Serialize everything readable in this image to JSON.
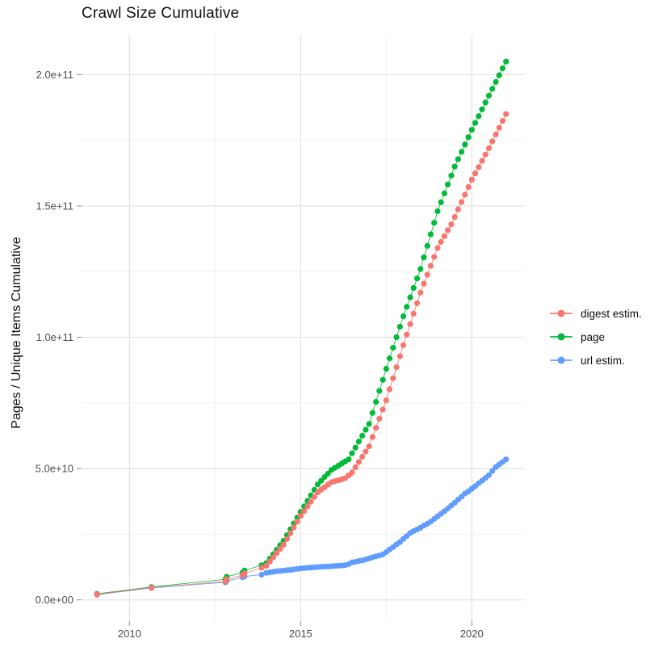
{
  "title": "Crawl Size Cumulative",
  "y_axis": {
    "title": "Pages / Unique Items Cumulative",
    "tick_labels": [
      "0.0e+00",
      "5.0e+10",
      "1.0e+11",
      "1.5e+11",
      "2.0e+11"
    ]
  },
  "x_axis": {
    "tick_labels": [
      "2010",
      "2015",
      "2020"
    ]
  },
  "legend": {
    "position": "right",
    "items": [
      {
        "label": "digest estim.",
        "color": "#F8766D"
      },
      {
        "label": "page",
        "color": "#00BA38"
      },
      {
        "label": "url estim.",
        "color": "#619CFF"
      }
    ]
  },
  "colors": {
    "series_red": "#F8766D",
    "series_green": "#00BA38",
    "series_blue": "#619CFF",
    "grid_major": "#E2E2E2",
    "grid_minor": "#F0F0F0",
    "tick_mark": "#888888",
    "axis_text": "#4D4D4D",
    "title_text": "#101010",
    "background": "#FFFFFF"
  },
  "chart_data": {
    "type": "scatter",
    "title": "Crawl Size Cumulative",
    "xlabel": "",
    "ylabel": "Pages / Unique Items Cumulative",
    "value_unit": "billions (1e9); y tick labels shown in scientific notation",
    "grid": true,
    "legend_position": "right",
    "xlim": [
      2008.6,
      2021.55
    ],
    "ylim_e9": [
      -8.1,
      215.2
    ],
    "x_ticks": [
      2010,
      2015,
      2020
    ],
    "x_minor_gridlines": [
      2012.5,
      2017.5
    ],
    "y_ticks_e9": [
      0,
      50,
      100,
      150,
      200
    ],
    "y_minor_gridlines_e9": [
      25,
      75,
      125,
      175
    ],
    "series": [
      {
        "name": "digest estim.",
        "color": "#F8766D",
        "points": [
          [
            2009.05,
            2.1
          ],
          [
            2010.64,
            4.7
          ],
          [
            2012.8,
            7.0
          ],
          [
            2012.84,
            7.9
          ],
          [
            2013.3,
            9.4
          ],
          [
            2013.36,
            10.1
          ],
          [
            2013.86,
            12.2
          ],
          [
            2014.0,
            13.0
          ],
          [
            2014.1,
            14.6
          ],
          [
            2014.2,
            16.2
          ],
          [
            2014.3,
            17.8
          ],
          [
            2014.4,
            19.4
          ],
          [
            2014.5,
            21.0
          ],
          [
            2014.6,
            23.2
          ],
          [
            2014.7,
            25.4
          ],
          [
            2014.8,
            27.6
          ],
          [
            2014.9,
            29.8
          ],
          [
            2015.0,
            32.0
          ],
          [
            2015.1,
            33.8
          ],
          [
            2015.2,
            35.6
          ],
          [
            2015.3,
            37.4
          ],
          [
            2015.4,
            39.2
          ],
          [
            2015.5,
            41.0
          ],
          [
            2015.6,
            42.0
          ],
          [
            2015.7,
            42.9
          ],
          [
            2015.8,
            43.9
          ],
          [
            2015.9,
            44.8
          ],
          [
            2016.0,
            45.2
          ],
          [
            2016.1,
            45.5
          ],
          [
            2016.2,
            45.9
          ],
          [
            2016.3,
            46.3
          ],
          [
            2016.4,
            47.4
          ],
          [
            2016.5,
            48.5
          ],
          [
            2016.6,
            50.5
          ],
          [
            2016.7,
            52.5
          ],
          [
            2016.8,
            54.5
          ],
          [
            2016.9,
            56.5
          ],
          [
            2017.0,
            58.5
          ],
          [
            2017.1,
            62.0
          ],
          [
            2017.2,
            65.5
          ],
          [
            2017.3,
            69.0
          ],
          [
            2017.4,
            72.5
          ],
          [
            2017.5,
            76.0
          ],
          [
            2017.6,
            80.2
          ],
          [
            2017.7,
            84.4
          ],
          [
            2017.8,
            88.6
          ],
          [
            2017.9,
            92.8
          ],
          [
            2018.0,
            97.0
          ],
          [
            2018.1,
            101.0
          ],
          [
            2018.2,
            105.0
          ],
          [
            2018.3,
            109.0
          ],
          [
            2018.4,
            113.0
          ],
          [
            2018.5,
            117.0
          ],
          [
            2018.6,
            120.4
          ],
          [
            2018.7,
            123.8
          ],
          [
            2018.8,
            127.2
          ],
          [
            2018.9,
            130.6
          ],
          [
            2019.0,
            134.0
          ],
          [
            2019.1,
            136.3
          ],
          [
            2019.2,
            138.5
          ],
          [
            2019.3,
            140.8
          ],
          [
            2019.4,
            143.0
          ],
          [
            2019.5,
            145.8
          ],
          [
            2019.6,
            148.7
          ],
          [
            2019.7,
            151.5
          ],
          [
            2019.8,
            154.3
          ],
          [
            2019.9,
            157.2
          ],
          [
            2020.0,
            160.0
          ],
          [
            2020.1,
            162.4
          ],
          [
            2020.2,
            164.8
          ],
          [
            2020.3,
            167.2
          ],
          [
            2020.4,
            169.6
          ],
          [
            2020.5,
            172.0
          ],
          [
            2020.6,
            174.6
          ],
          [
            2020.7,
            177.2
          ],
          [
            2020.8,
            179.8
          ],
          [
            2020.9,
            182.4
          ],
          [
            2021.0,
            185.0
          ]
        ]
      },
      {
        "name": "page",
        "color": "#00BA38",
        "points": [
          [
            2009.05,
            2.3
          ],
          [
            2010.64,
            4.9
          ],
          [
            2012.8,
            7.8
          ],
          [
            2012.84,
            8.8
          ],
          [
            2013.3,
            10.4
          ],
          [
            2013.36,
            11.2
          ],
          [
            2013.86,
            13.2
          ],
          [
            2014.0,
            14.0
          ],
          [
            2014.1,
            15.7
          ],
          [
            2014.2,
            17.4
          ],
          [
            2014.3,
            19.1
          ],
          [
            2014.4,
            20.8
          ],
          [
            2014.5,
            22.5
          ],
          [
            2014.6,
            24.7
          ],
          [
            2014.7,
            26.9
          ],
          [
            2014.8,
            29.1
          ],
          [
            2014.9,
            31.3
          ],
          [
            2015.0,
            33.5
          ],
          [
            2015.1,
            35.6
          ],
          [
            2015.2,
            37.7
          ],
          [
            2015.3,
            39.8
          ],
          [
            2015.4,
            41.9
          ],
          [
            2015.5,
            44.0
          ],
          [
            2015.6,
            45.4
          ],
          [
            2015.7,
            46.8
          ],
          [
            2015.8,
            48.1
          ],
          [
            2015.9,
            49.5
          ],
          [
            2016.0,
            50.3
          ],
          [
            2016.1,
            51.1
          ],
          [
            2016.2,
            51.9
          ],
          [
            2016.3,
            52.7
          ],
          [
            2016.4,
            53.5
          ],
          [
            2016.5,
            55.8
          ],
          [
            2016.6,
            58.0
          ],
          [
            2016.7,
            60.3
          ],
          [
            2016.8,
            62.5
          ],
          [
            2016.9,
            64.8
          ],
          [
            2017.0,
            67.0
          ],
          [
            2017.1,
            71.2
          ],
          [
            2017.2,
            75.4
          ],
          [
            2017.3,
            79.6
          ],
          [
            2017.4,
            83.8
          ],
          [
            2017.5,
            88.0
          ],
          [
            2017.6,
            92.0
          ],
          [
            2017.7,
            96.0
          ],
          [
            2017.8,
            100.0
          ],
          [
            2017.9,
            104.0
          ],
          [
            2018.0,
            108.0
          ],
          [
            2018.1,
            111.6
          ],
          [
            2018.2,
            115.2
          ],
          [
            2018.3,
            118.8
          ],
          [
            2018.4,
            122.4
          ],
          [
            2018.5,
            126.0
          ],
          [
            2018.6,
            130.4
          ],
          [
            2018.7,
            134.8
          ],
          [
            2018.8,
            139.2
          ],
          [
            2018.9,
            143.6
          ],
          [
            2019.0,
            148.0
          ],
          [
            2019.1,
            151.4
          ],
          [
            2019.2,
            154.8
          ],
          [
            2019.3,
            158.2
          ],
          [
            2019.4,
            161.6
          ],
          [
            2019.5,
            165.0
          ],
          [
            2019.6,
            167.8
          ],
          [
            2019.7,
            170.6
          ],
          [
            2019.8,
            173.4
          ],
          [
            2019.9,
            176.2
          ],
          [
            2020.0,
            179.0
          ],
          [
            2020.1,
            181.6
          ],
          [
            2020.2,
            184.2
          ],
          [
            2020.3,
            186.8
          ],
          [
            2020.4,
            189.4
          ],
          [
            2020.5,
            192.0
          ],
          [
            2020.6,
            194.6
          ],
          [
            2020.7,
            197.2
          ],
          [
            2020.8,
            199.8
          ],
          [
            2020.9,
            202.4
          ],
          [
            2021.0,
            205.0
          ]
        ]
      },
      {
        "name": "url estim.",
        "color": "#619CFF",
        "points": [
          [
            2009.05,
            2.0
          ],
          [
            2010.64,
            4.5
          ],
          [
            2012.8,
            6.7
          ],
          [
            2012.84,
            7.2
          ],
          [
            2013.3,
            8.6
          ],
          [
            2013.36,
            8.9
          ],
          [
            2013.86,
            9.6
          ],
          [
            2014.0,
            10.3
          ],
          [
            2014.1,
            10.5
          ],
          [
            2014.2,
            10.7
          ],
          [
            2014.3,
            10.9
          ],
          [
            2014.4,
            11.0
          ],
          [
            2014.5,
            11.2
          ],
          [
            2014.6,
            11.3
          ],
          [
            2014.7,
            11.4
          ],
          [
            2014.8,
            11.6
          ],
          [
            2014.9,
            11.8
          ],
          [
            2015.0,
            12.0
          ],
          [
            2015.1,
            12.1
          ],
          [
            2015.2,
            12.2
          ],
          [
            2015.3,
            12.3
          ],
          [
            2015.4,
            12.4
          ],
          [
            2015.5,
            12.5
          ],
          [
            2015.6,
            12.6
          ],
          [
            2015.7,
            12.7
          ],
          [
            2015.8,
            12.7
          ],
          [
            2015.9,
            12.8
          ],
          [
            2016.0,
            12.9
          ],
          [
            2016.1,
            13.0
          ],
          [
            2016.2,
            13.1
          ],
          [
            2016.3,
            13.2
          ],
          [
            2016.4,
            13.6
          ],
          [
            2016.5,
            14.3
          ],
          [
            2016.6,
            14.5
          ],
          [
            2016.7,
            14.8
          ],
          [
            2016.8,
            15.0
          ],
          [
            2016.9,
            15.4
          ],
          [
            2017.0,
            15.8
          ],
          [
            2017.1,
            16.2
          ],
          [
            2017.2,
            16.6
          ],
          [
            2017.3,
            16.9
          ],
          [
            2017.4,
            17.3
          ],
          [
            2017.5,
            18.2
          ],
          [
            2017.6,
            19.2
          ],
          [
            2017.7,
            20.1
          ],
          [
            2017.8,
            21.1
          ],
          [
            2017.9,
            22.0
          ],
          [
            2018.0,
            23.2
          ],
          [
            2018.1,
            24.3
          ],
          [
            2018.2,
            25.5
          ],
          [
            2018.3,
            26.2
          ],
          [
            2018.4,
            26.8
          ],
          [
            2018.5,
            27.5
          ],
          [
            2018.6,
            28.3
          ],
          [
            2018.7,
            29.0
          ],
          [
            2018.8,
            29.8
          ],
          [
            2018.9,
            30.8
          ],
          [
            2019.0,
            31.8
          ],
          [
            2019.1,
            32.8
          ],
          [
            2019.2,
            33.8
          ],
          [
            2019.3,
            34.8
          ],
          [
            2019.4,
            35.9
          ],
          [
            2019.5,
            37.0
          ],
          [
            2019.6,
            38.2
          ],
          [
            2019.7,
            39.3
          ],
          [
            2019.8,
            40.5
          ],
          [
            2019.9,
            41.3
          ],
          [
            2020.0,
            42.3
          ],
          [
            2020.1,
            43.3
          ],
          [
            2020.2,
            44.4
          ],
          [
            2020.3,
            45.4
          ],
          [
            2020.4,
            46.4
          ],
          [
            2020.5,
            47.5
          ],
          [
            2020.6,
            49.1
          ],
          [
            2020.7,
            50.6
          ],
          [
            2020.8,
            51.6
          ],
          [
            2020.9,
            52.5
          ],
          [
            2021.0,
            53.5
          ]
        ]
      }
    ]
  }
}
